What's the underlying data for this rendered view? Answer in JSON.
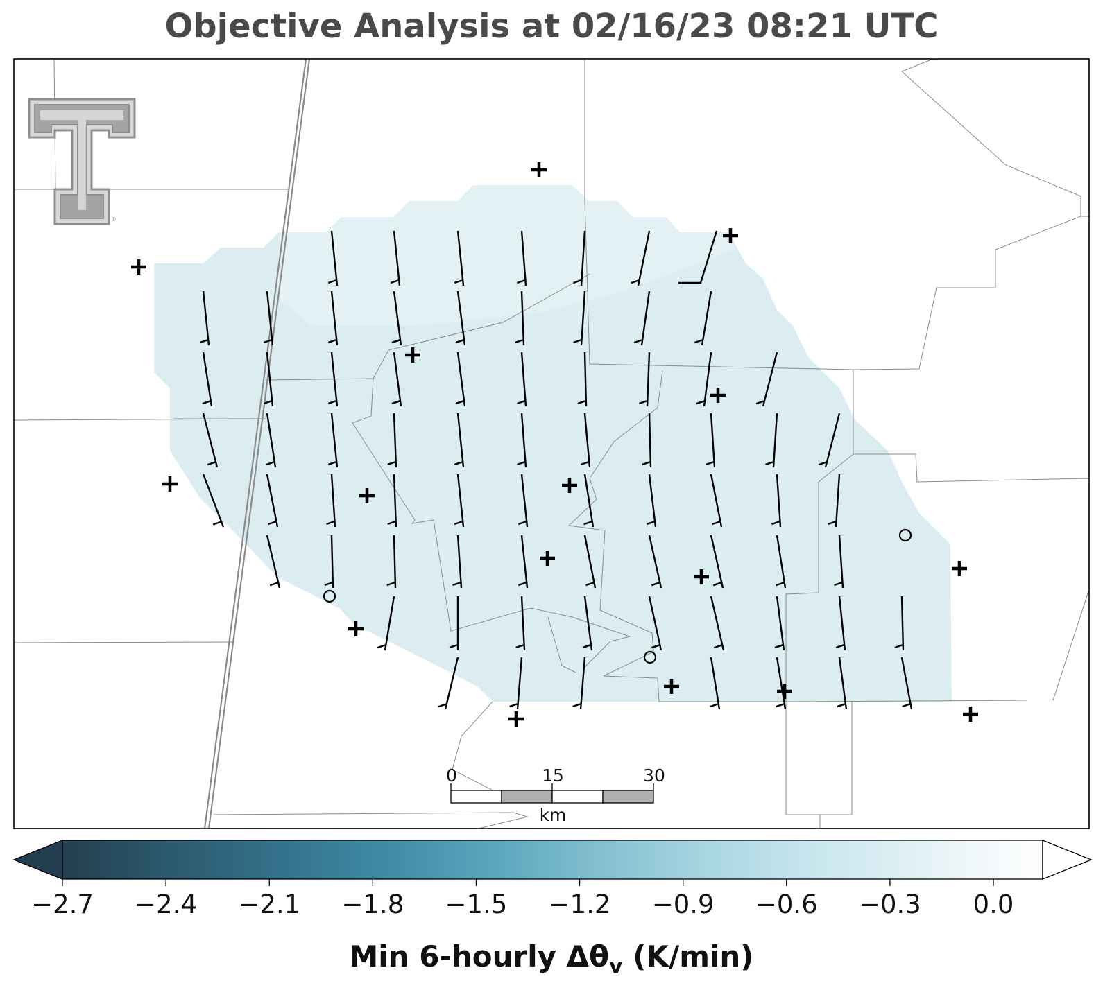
{
  "title": "Objective Analysis at 02/16/23 08:21 UTC",
  "colorbar": {
    "label": "Min 6-hourly Δθ",
    "label_sub": "v",
    "label_units": " (K/min)",
    "ticks": [
      "−2.7",
      "−2.4",
      "−2.1",
      "−1.8",
      "−1.5",
      "−1.2",
      "−0.9",
      "−0.6",
      "−0.3",
      "0.0"
    ],
    "colors": [
      "#233f4f",
      "#2c5a6e",
      "#34718a",
      "#3f8ba6",
      "#5aa6bd",
      "#84c0d0",
      "#a9d6e2",
      "#c9e6ee",
      "#e4f2f6",
      "#ffffff"
    ],
    "extend": "both"
  },
  "scale_bar": {
    "labels": [
      "0",
      "15",
      "30"
    ],
    "unit": "km"
  },
  "analysis_fill_color": "#dcedf2",
  "logo": "texas-tech-double-t",
  "station_symbols": [
    "plus-marker",
    "open-circle-marker"
  ],
  "wind_field": "wind barbs, mostly northerly (~10 kt)"
}
